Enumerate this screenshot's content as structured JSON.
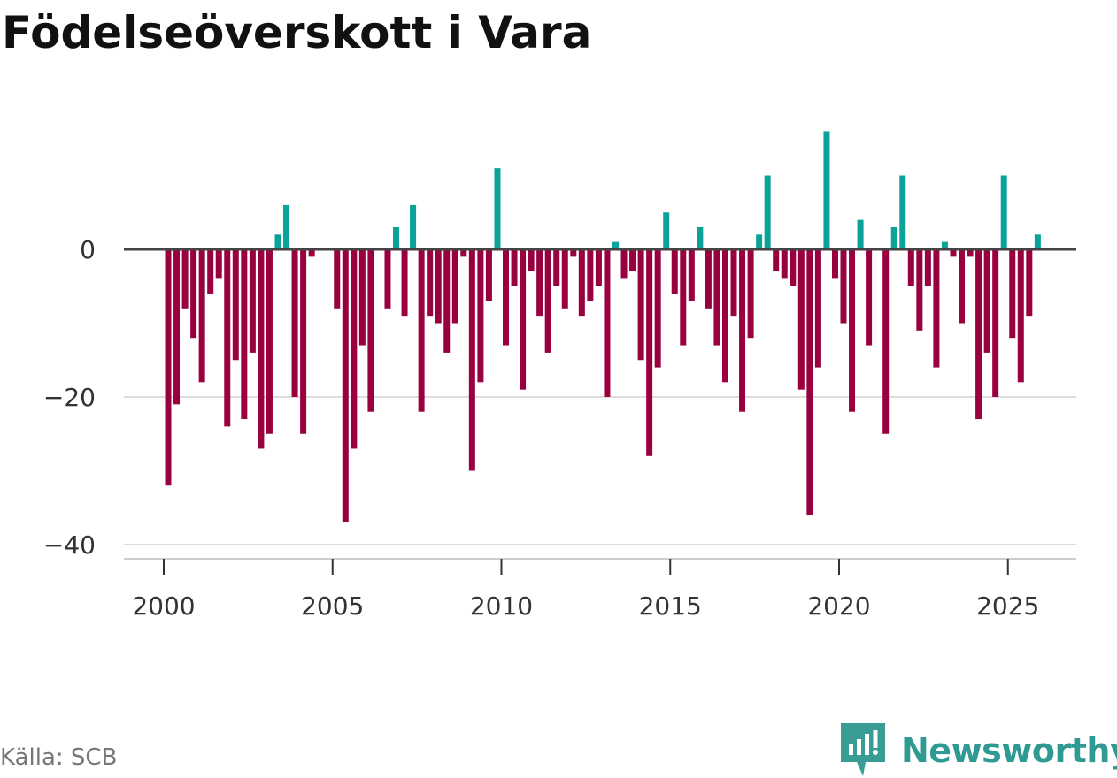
{
  "title": "Födelseöverskott i Vara",
  "source": "Källa: SCB",
  "brand": "Newsworthy",
  "colors": {
    "positive": "#0aa39a",
    "negative": "#990040",
    "brand": "#2f9a92",
    "zero_line": "#444444",
    "grid": "#dddddd"
  },
  "chart_data": {
    "type": "bar",
    "title": "Födelseöverskott i Vara",
    "xlabel": "",
    "ylabel": "",
    "x_start": 2000,
    "periods_per_year": 4,
    "ylim": [
      -40,
      16
    ],
    "yticks": [
      0,
      -20,
      -40
    ],
    "ytick_labels": [
      "0",
      "−20",
      "−40"
    ],
    "xticks": [
      2000,
      2005,
      2010,
      2015,
      2020,
      2025
    ],
    "xtick_labels": [
      "2000",
      "2005",
      "2010",
      "2015",
      "2020",
      "2025"
    ],
    "values": [
      -32,
      -21,
      -8,
      -12,
      -18,
      -6,
      -4,
      -24,
      -15,
      -23,
      -14,
      -27,
      -25,
      2,
      6,
      -20,
      -25,
      -1,
      0,
      0,
      -8,
      -37,
      -27,
      -13,
      -22,
      0,
      -8,
      3,
      -9,
      6,
      -22,
      -9,
      -10,
      -14,
      -10,
      -1,
      -30,
      -18,
      -7,
      11,
      -13,
      -5,
      -19,
      -3,
      -9,
      -14,
      -5,
      -8,
      -1,
      -9,
      -7,
      -5,
      -20,
      1,
      -4,
      -3,
      -15,
      -28,
      -16,
      5,
      -6,
      -13,
      -7,
      3,
      -8,
      -13,
      -18,
      -9,
      -22,
      -12,
      2,
      10,
      -3,
      -4,
      -5,
      -19,
      -36,
      -16,
      16,
      -4,
      -10,
      -22,
      4,
      -13,
      0,
      -25,
      3,
      10,
      -5,
      -11,
      -5,
      -16,
      1,
      -1,
      -10,
      -1,
      -23,
      -14,
      -20,
      10,
      -12,
      -18,
      -9,
      2
    ]
  }
}
